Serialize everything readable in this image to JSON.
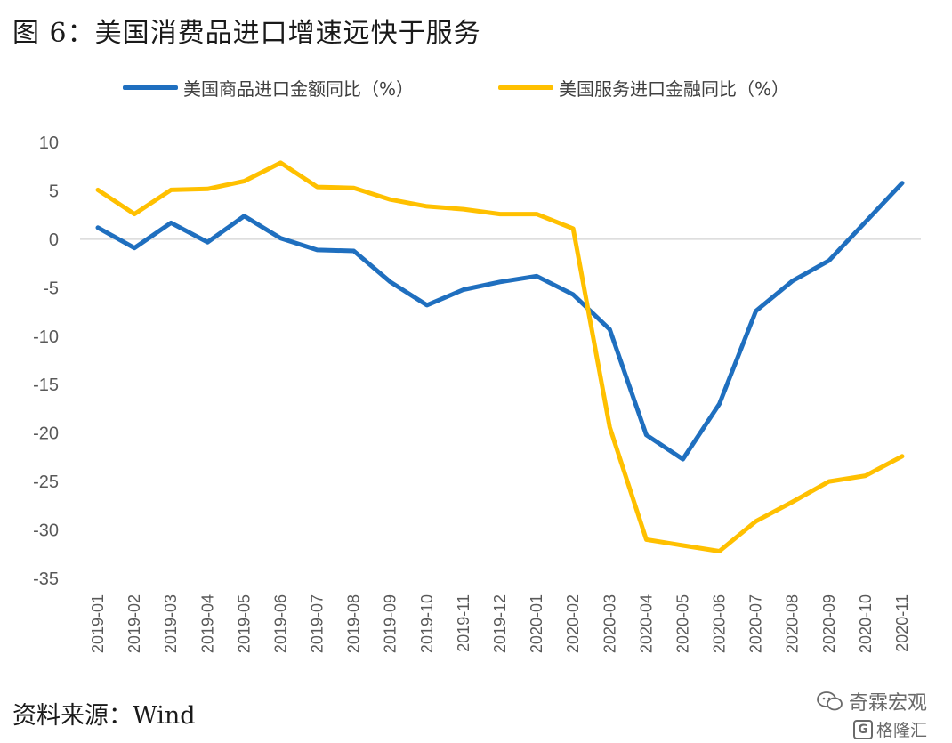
{
  "title": "图 6：美国消费品进口增速远快于服务",
  "source": "资料来源：Wind",
  "watermark": {
    "line1": "奇霖宏观",
    "line2": "格隆汇",
    "icon1": "wechat-icon",
    "icon2": "gelonghui-logo-icon"
  },
  "colors": {
    "goods": "#1f6fbf",
    "services": "#ffc000",
    "axis": "#d9d9d9",
    "tick_text": "#595959"
  },
  "chart_data": {
    "type": "line",
    "title": "",
    "xlabel": "",
    "ylabel": "",
    "ylim": [
      -35,
      10
    ],
    "yticks": [
      10,
      5,
      0,
      -5,
      -10,
      -15,
      -20,
      -25,
      -30,
      -35
    ],
    "grid": false,
    "legend_position": "top",
    "categories": [
      "2019-01",
      "2019-02",
      "2019-03",
      "2019-04",
      "2019-05",
      "2019-06",
      "2019-07",
      "2019-08",
      "2019-09",
      "2019-10",
      "2019-11",
      "2019-12",
      "2020-01",
      "2020-02",
      "2020-03",
      "2020-04",
      "2020-05",
      "2020-06",
      "2020-07",
      "2020-08",
      "2020-09",
      "2020-10",
      "2020-11"
    ],
    "series": [
      {
        "name": "美国商品进口金额同比（%）",
        "color": "#1f6fbf",
        "values": [
          1.2,
          -0.9,
          1.7,
          -0.3,
          2.4,
          0.1,
          -1.1,
          -1.2,
          -4.4,
          -6.8,
          -5.2,
          -4.4,
          -3.8,
          -5.7,
          -9.3,
          -20.2,
          -22.7,
          -17.0,
          -7.4,
          -4.3,
          -2.2,
          1.8,
          5.8
        ]
      },
      {
        "name": "美国服务进口金融同比（%）",
        "color": "#ffc000",
        "values": [
          5.1,
          2.6,
          5.1,
          5.2,
          6.0,
          7.9,
          5.4,
          5.3,
          4.1,
          3.4,
          3.1,
          2.6,
          2.6,
          1.1,
          -19.4,
          -31.0,
          -31.6,
          -32.2,
          -29.1,
          -27.1,
          -25.0,
          -24.4,
          -22.4
        ]
      }
    ]
  }
}
